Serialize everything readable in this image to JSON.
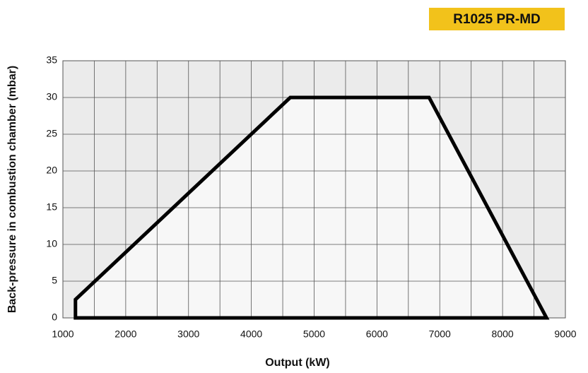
{
  "chart_data": {
    "type": "area",
    "title": "R1025 PR-MD",
    "x_label": "Output (kW)",
    "y_label": "Back-pressure in combustion chamber (mbar)",
    "x": [
      1200,
      1200,
      4620,
      6830,
      8700
    ],
    "values": [
      0,
      2.5,
      30,
      30,
      0
    ],
    "color": "#000000",
    "fill": "#f7f7f7",
    "xlim": [
      1000,
      9000
    ],
    "xticks": [
      1000,
      2000,
      3000,
      4000,
      5000,
      6000,
      7000,
      8000,
      9000
    ],
    "xminor": [
      1500,
      2500,
      3500,
      4500,
      5500,
      6500,
      7500,
      8500
    ],
    "ylim": [
      0,
      35
    ],
    "yticks": [
      0,
      5,
      10,
      15,
      20,
      25,
      30,
      35
    ],
    "grid": true
  }
}
